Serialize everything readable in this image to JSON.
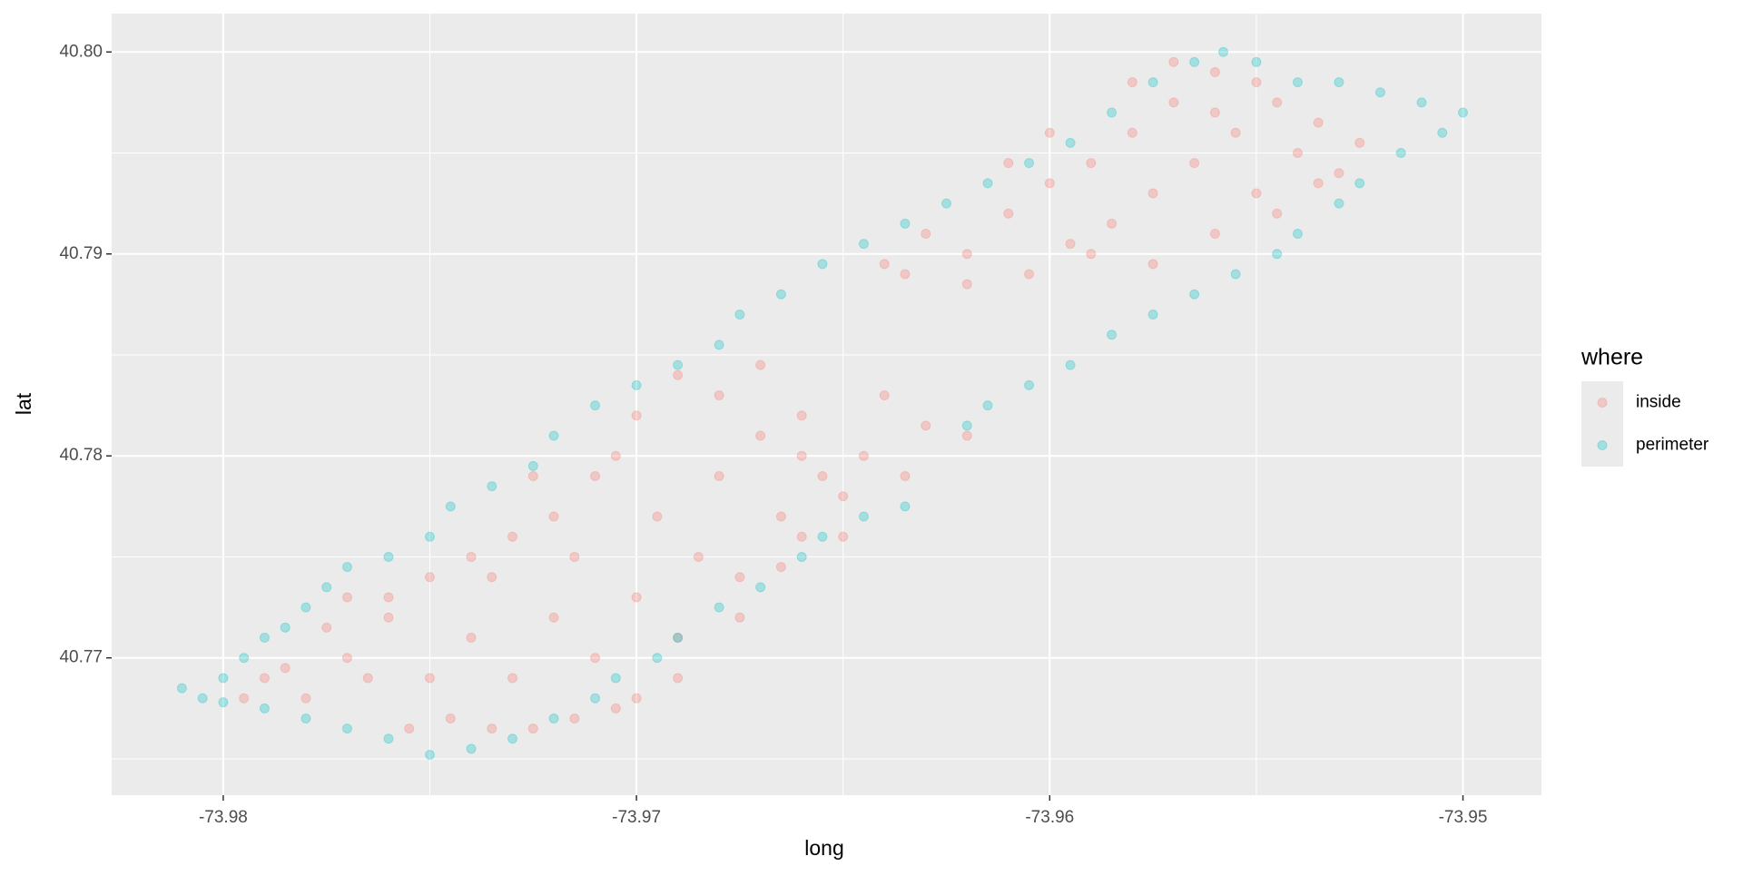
{
  "chart_data": {
    "type": "scatter",
    "x_label": "long",
    "y_label": "lat",
    "legend_title": "where",
    "legend_position": "right",
    "grid": true,
    "alpha": 0.3,
    "xlim": [
      -73.9827,
      -73.9481
    ],
    "ylim": [
      40.7632,
      40.8019
    ],
    "xticks": [
      -73.98,
      -73.97,
      -73.96,
      -73.95
    ],
    "yticks": [
      40.77,
      40.78,
      40.79,
      {
        "value": 40.8,
        "label": "40.80"
      }
    ],
    "xminor_ticks": [
      -73.975,
      -73.965,
      -73.955
    ],
    "yminor_ticks": [
      40.765,
      40.775,
      40.785,
      40.795
    ],
    "series": [
      {
        "name": "inside",
        "color": "#F8766D",
        "x": [
          -73.979,
          -73.978,
          -73.977,
          -73.976,
          -73.975,
          -73.9745,
          -73.974,
          -73.9735,
          -73.973,
          -73.9725,
          -73.972,
          -73.9715,
          -73.971,
          -73.9705,
          -73.97,
          -73.9695,
          -73.969,
          -73.9685,
          -73.968,
          -73.9675,
          -73.967,
          -73.9665,
          -73.966,
          -73.9655,
          -73.965,
          -73.9645,
          -73.964,
          -73.9635,
          -73.963,
          -73.962,
          -73.969,
          -73.97,
          -73.971,
          -73.972,
          -73.973,
          -73.974,
          -73.975,
          -73.976,
          -73.977,
          -73.9775,
          -73.9785,
          -73.9795,
          -73.9725,
          -73.9705,
          -73.968,
          -73.967,
          -73.966,
          -73.965,
          -73.9675,
          -73.9665,
          -73.969,
          -73.97,
          -73.9715,
          -73.9735,
          -73.9755,
          -73.9765,
          -73.966,
          -73.964,
          -73.963,
          -73.962,
          -73.961,
          -73.96,
          -73.9595,
          -73.959,
          -73.9585,
          -73.958,
          -73.9575,
          -73.957,
          -73.9565,
          -73.956,
          -73.9555,
          -73.955,
          -73.9545,
          -73.954,
          -73.9535,
          -73.953,
          -73.9525,
          -73.9545,
          -73.956,
          -73.9575,
          -73.959,
          -73.9605,
          -73.962,
          -73.9635,
          -73.958,
          -73.957,
          -73.96,
          -73.961,
          -73.956,
          -73.955,
          -73.9535
        ],
        "values": [
          40.769,
          40.768,
          40.77,
          40.772,
          40.769,
          40.767,
          40.771,
          40.774,
          40.769,
          40.7665,
          40.772,
          40.775,
          40.77,
          40.7675,
          40.773,
          40.777,
          40.771,
          40.775,
          40.779,
          40.774,
          40.781,
          40.777,
          40.782,
          40.779,
          40.776,
          40.78,
          40.783,
          40.779,
          40.7815,
          40.781,
          40.784,
          40.782,
          40.779,
          40.777,
          40.776,
          40.775,
          40.774,
          40.773,
          40.773,
          40.7715,
          40.7695,
          40.768,
          40.779,
          40.78,
          40.783,
          40.7845,
          40.78,
          40.778,
          40.772,
          40.7745,
          40.769,
          40.768,
          40.767,
          40.7665,
          40.7665,
          40.769,
          40.776,
          40.7895,
          40.791,
          40.79,
          40.792,
          40.7935,
          40.7905,
          40.7945,
          40.7915,
          40.796,
          40.793,
          40.7975,
          40.7945,
          40.799,
          40.796,
          40.793,
          40.7975,
          40.795,
          40.7965,
          40.794,
          40.7955,
          40.792,
          40.791,
          40.7895,
          40.79,
          40.789,
          40.7885,
          40.789,
          40.7985,
          40.7995,
          40.796,
          40.7945,
          40.797,
          40.7985,
          40.7935
        ]
      },
      {
        "name": "perimeter",
        "color": "#00BFC4",
        "x": [
          -73.981,
          -73.9805,
          -73.98,
          -73.9795,
          -73.979,
          -73.9785,
          -73.978,
          -73.9775,
          -73.977,
          -73.976,
          -73.975,
          -73.9745,
          -73.9735,
          -73.9725,
          -73.972,
          -73.971,
          -73.97,
          -73.969,
          -73.968,
          -73.9675,
          -73.9665,
          -73.9655,
          -73.9645,
          -73.9635,
          -73.9625,
          -73.9615,
          -73.9605,
          -73.9595,
          -73.9585,
          -73.9575,
          -73.9565,
          -73.9558,
          -73.955,
          -73.954,
          -73.953,
          -73.952,
          -73.951,
          -73.95,
          -73.9505,
          -73.9515,
          -73.9525,
          -73.953,
          -73.954,
          -73.9545,
          -73.9555,
          -73.9565,
          -73.9575,
          -73.9585,
          -73.9595,
          -73.9605,
          -73.9615,
          -73.962,
          -73.9635,
          -73.9645,
          -73.9655,
          -73.966,
          -73.967,
          -73.968,
          -73.969,
          -73.9695,
          -73.9705,
          -73.971,
          -73.972,
          -73.973,
          -73.974,
          -73.975,
          -73.976,
          -73.977,
          -73.978,
          -73.979,
          -73.98
        ],
        "values": [
          40.7685,
          40.768,
          40.769,
          40.77,
          40.771,
          40.7715,
          40.7725,
          40.7735,
          40.7745,
          40.775,
          40.776,
          40.7775,
          40.7785,
          40.7795,
          40.781,
          40.7825,
          40.7835,
          40.7845,
          40.7855,
          40.787,
          40.788,
          40.7895,
          40.7905,
          40.7915,
          40.7925,
          40.7935,
          40.7945,
          40.7955,
          40.797,
          40.7985,
          40.7995,
          40.8,
          40.7995,
          40.7985,
          40.7985,
          40.798,
          40.7975,
          40.797,
          40.796,
          40.795,
          40.7935,
          40.7925,
          40.791,
          40.79,
          40.789,
          40.788,
          40.787,
          40.786,
          40.7845,
          40.7835,
          40.7825,
          40.7815,
          40.7775,
          40.777,
          40.776,
          40.775,
          40.7735,
          40.7725,
          40.771,
          40.77,
          40.769,
          40.768,
          40.767,
          40.766,
          40.7655,
          40.7652,
          40.766,
          40.7665,
          40.767,
          40.7675,
          40.7678
        ]
      }
    ]
  }
}
